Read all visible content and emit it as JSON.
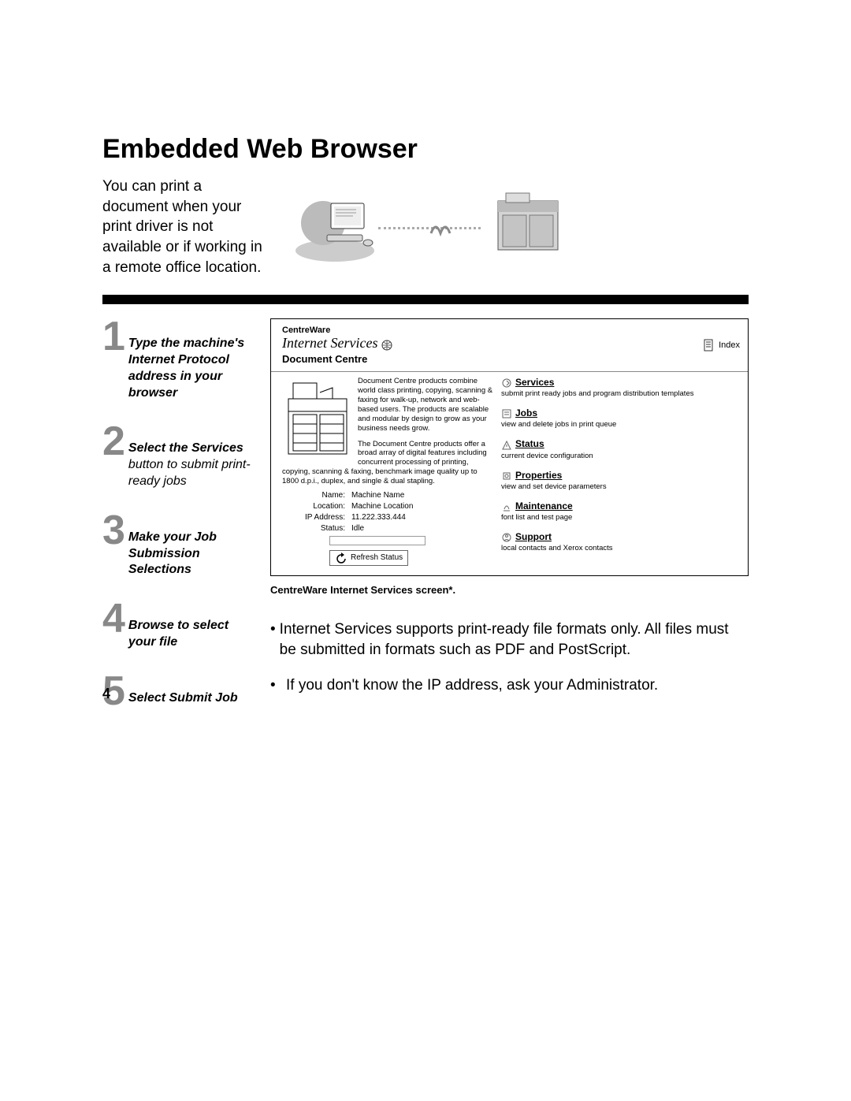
{
  "title": "Embedded Web Browser",
  "intro": "You can print a document when your print driver is not available or if working in a remote office location.",
  "steps": [
    {
      "num": "1",
      "html": "Type the machine's Internet Protocol address in your browser"
    },
    {
      "num": "2",
      "html": "Select the Services <span class='nonbold'>button to submit print-ready jobs</span>"
    },
    {
      "num": "3",
      "html": "Make your Job Submission Selections"
    },
    {
      "num": "4",
      "html": "Browse to select your file"
    },
    {
      "num": "5",
      "html": "Select Submit Job"
    }
  ],
  "screenshot": {
    "brand_small": "CentreWare",
    "brand_italic": "Internet Services",
    "index_label": "Index",
    "subhead": "Document Centre",
    "desc1": "Document Centre products combine world class printing, copying, scanning & faxing for walk-up, network and web-based users. The products are scalable and modular by design to grow as your business needs grow.",
    "desc2": "The Document Centre products offer a broad array of digital features including concurrent processing of printing, copying, scanning & faxing, benchmark image quality up to 1800 d.p.i., duplex, and single & dual stapling.",
    "kv": [
      {
        "k": "Name:",
        "v": "Machine Name"
      },
      {
        "k": "Location:",
        "v": "Machine Location"
      },
      {
        "k": "IP Address:",
        "v": "11.222.333.444"
      },
      {
        "k": "Status:",
        "v": "Idle"
      }
    ],
    "refresh": "Refresh Status",
    "links": [
      {
        "t": "Services",
        "s": "submit print ready jobs and program distribution templates"
      },
      {
        "t": "Jobs",
        "s": "view and delete jobs in print queue"
      },
      {
        "t": "Status",
        "s": "current device configuration"
      },
      {
        "t": "Properties",
        "s": "view and set device parameters"
      },
      {
        "t": "Maintenance",
        "s": "font list and test page"
      },
      {
        "t": "Support",
        "s": "local contacts and Xerox contacts"
      }
    ]
  },
  "caption": "CentreWare Internet Services screen*.",
  "bullets": [
    "Internet Services supports print-ready file formats only. All files must be submitted in formats such as PDF and PostScript.",
    "If you don't know the IP address, ask your Administrator."
  ],
  "pagenum": "4"
}
